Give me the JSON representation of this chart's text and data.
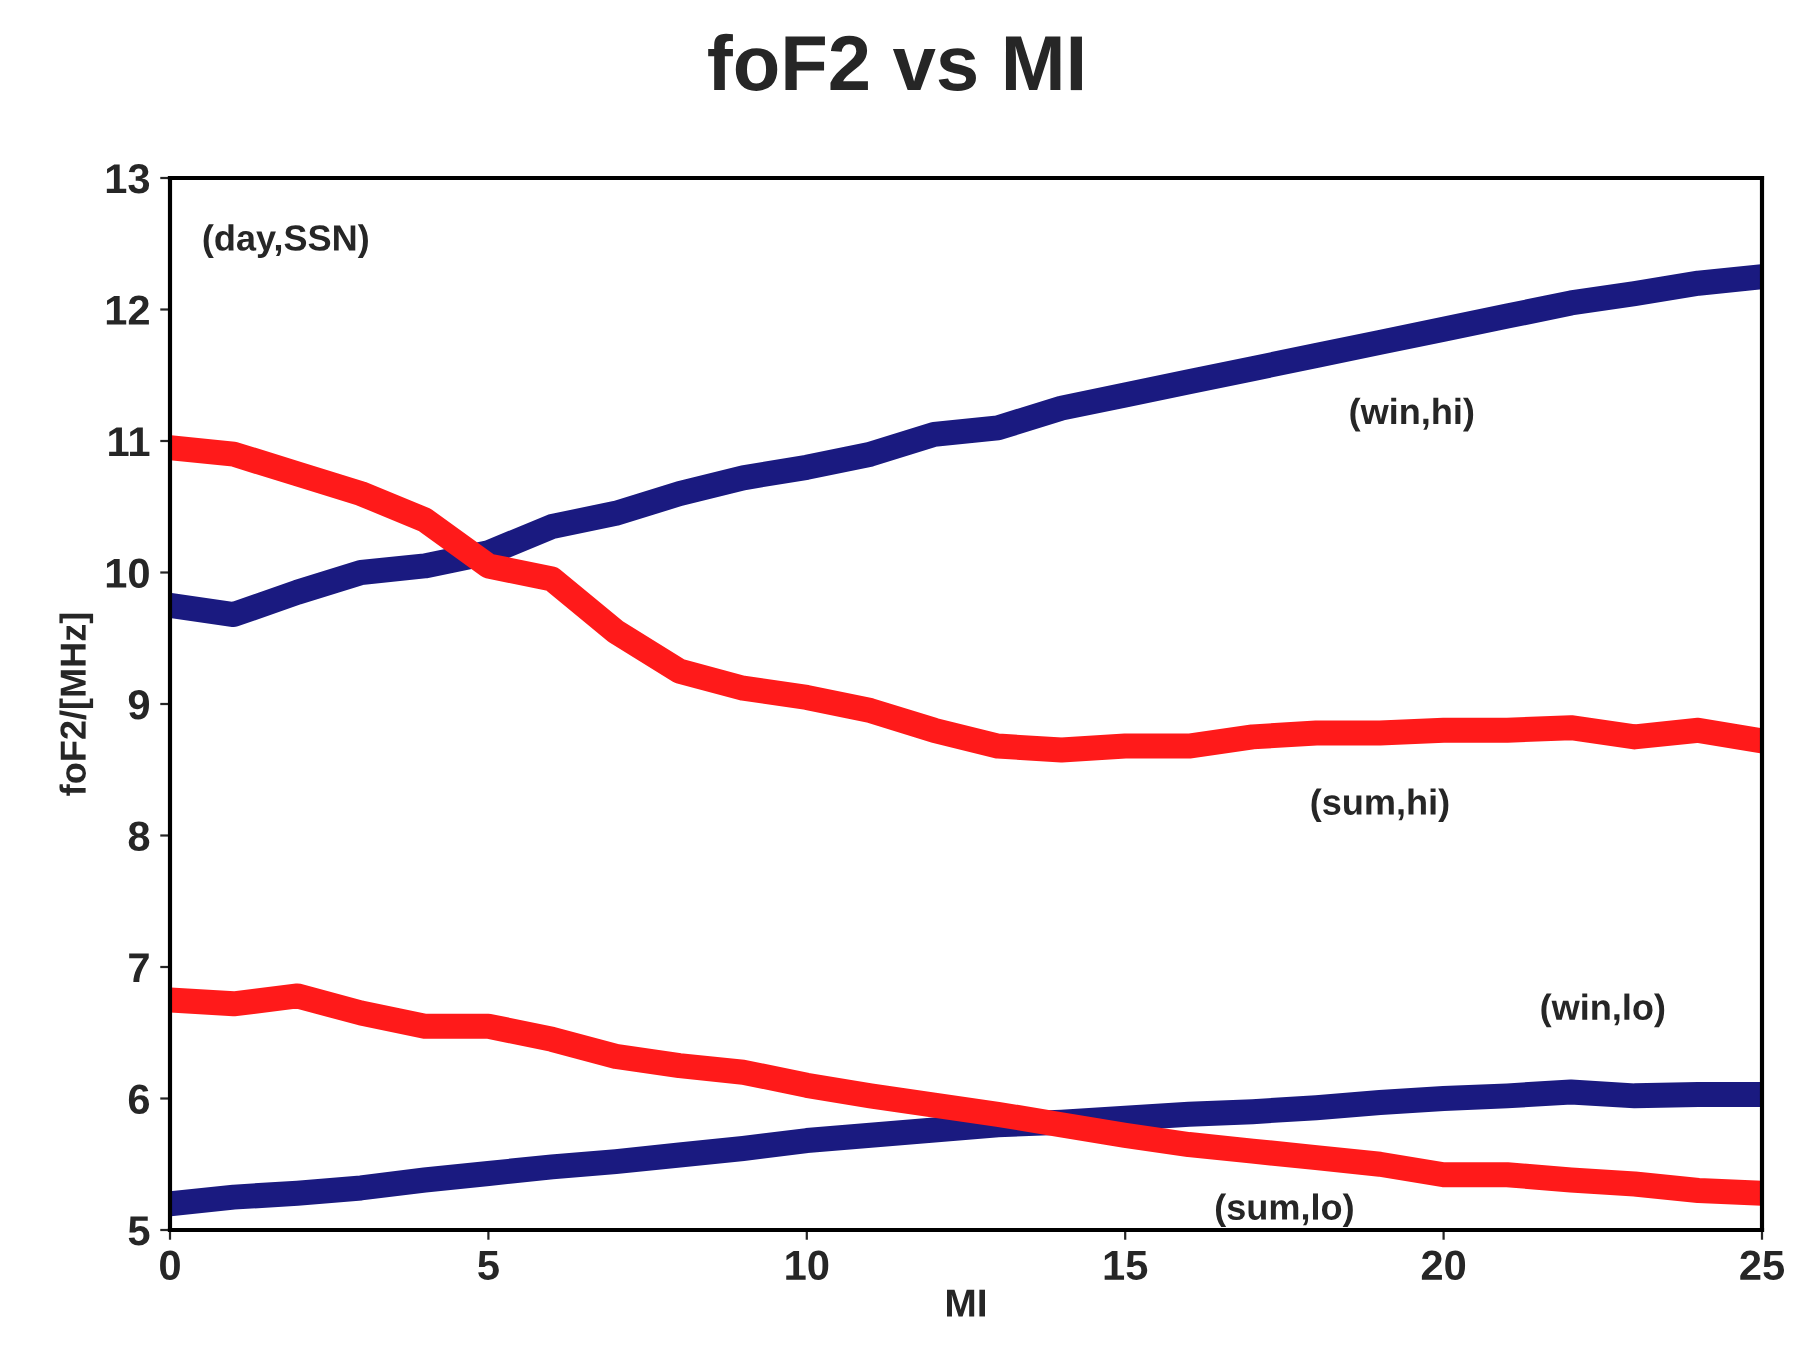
{
  "chart_data": {
    "type": "line",
    "title": "foF2 vs MI",
    "xlabel": "MI",
    "ylabel": "foF2/[MHz]",
    "annotations": [
      "(day,SSN)"
    ],
    "x": [
      0,
      1,
      2,
      3,
      4,
      5,
      6,
      7,
      8,
      9,
      10,
      11,
      12,
      13,
      14,
      15,
      16,
      17,
      18,
      19,
      20,
      21,
      22,
      23,
      24,
      25
    ],
    "series": [
      {
        "name": "(win,hi)",
        "color": "#1a1a80",
        "values": [
          9.75,
          9.68,
          9.85,
          10.0,
          10.05,
          10.15,
          10.35,
          10.45,
          10.6,
          10.72,
          10.8,
          10.9,
          11.05,
          11.1,
          11.25,
          11.35,
          11.45,
          11.55,
          11.65,
          11.75,
          11.85,
          11.95,
          12.05,
          12.12,
          12.2,
          12.25
        ]
      },
      {
        "name": "(sum,hi)",
        "color": "#ff1a1a",
        "values": [
          10.95,
          10.9,
          10.75,
          10.6,
          10.4,
          10.05,
          9.95,
          9.55,
          9.25,
          9.12,
          9.05,
          8.95,
          8.8,
          8.68,
          8.65,
          8.68,
          8.68,
          8.75,
          8.78,
          8.78,
          8.8,
          8.8,
          8.82,
          8.75,
          8.8,
          8.72
        ]
      },
      {
        "name": "(win,lo)",
        "color": "#1a1a80",
        "values": [
          5.2,
          5.25,
          5.28,
          5.32,
          5.38,
          5.43,
          5.48,
          5.52,
          5.57,
          5.62,
          5.68,
          5.72,
          5.76,
          5.8,
          5.82,
          5.85,
          5.88,
          5.9,
          5.93,
          5.97,
          6.0,
          6.02,
          6.05,
          6.02,
          6.03,
          6.03
        ]
      },
      {
        "name": "(sum,lo)",
        "color": "#ff1a1a",
        "values": [
          6.75,
          6.72,
          6.78,
          6.65,
          6.55,
          6.55,
          6.45,
          6.32,
          6.25,
          6.2,
          6.1,
          6.02,
          5.95,
          5.88,
          5.8,
          5.72,
          5.65,
          5.6,
          5.55,
          5.5,
          5.42,
          5.42,
          5.38,
          5.35,
          5.3,
          5.28
        ]
      }
    ],
    "xlim": [
      0,
      25
    ],
    "xticks": [
      0,
      5,
      10,
      15,
      20,
      25
    ],
    "ylim": [
      5,
      13
    ],
    "yticks": [
      5,
      6,
      7,
      8,
      9,
      10,
      11,
      12,
      13
    ],
    "line_style": "solid"
  }
}
